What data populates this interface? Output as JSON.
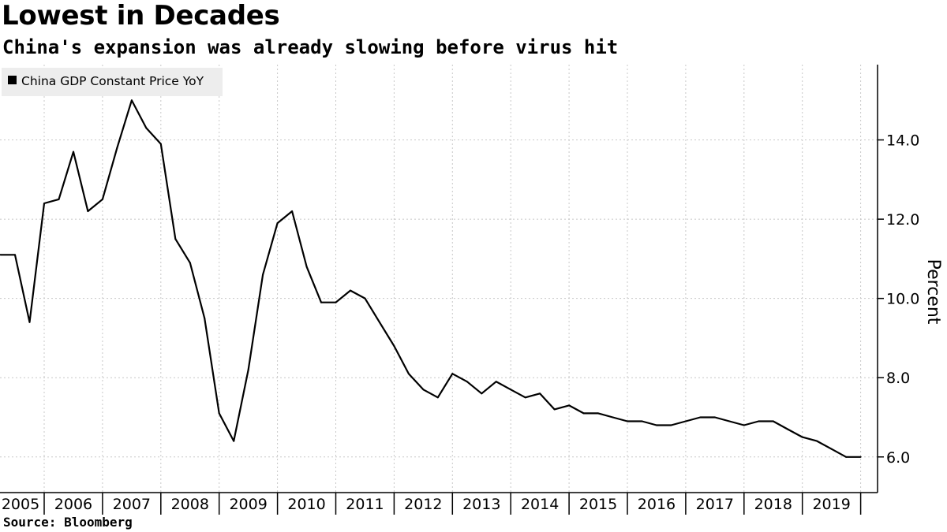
{
  "title": "Lowest in Decades",
  "subtitle": "China's expansion was already slowing before virus hit",
  "source": "Source: Bloomberg",
  "colors": {
    "line": "#000000",
    "grid": "#c8c8c8",
    "legend_bg": "#ededed"
  },
  "chart_data": {
    "type": "line",
    "title": "Lowest in Decades",
    "subtitle": "China's expansion was already slowing before virus hit",
    "xlabel": "",
    "ylabel": "Percent",
    "y_axis_side": "right",
    "ylim": [
      5.1,
      15.9
    ],
    "yticks": [
      6.0,
      8.0,
      10.0,
      12.0,
      14.0
    ],
    "ytick_labels": [
      "6.0",
      "8.0",
      "10.0",
      "12.0",
      "14.0"
    ],
    "x_tick_labels": [
      "2005",
      "2006",
      "2007",
      "2008",
      "2009",
      "2010",
      "2011",
      "2012",
      "2013",
      "2014",
      "2015",
      "2016",
      "2017",
      "2018",
      "2019"
    ],
    "grid": true,
    "legend_position": "top-left",
    "series": [
      {
        "name": "China GDP Constant Price YoY",
        "color": "#000000",
        "x": [
          "2005-Q1",
          "2005-Q2",
          "2005-Q3",
          "2005-Q4",
          "2006-Q1",
          "2006-Q2",
          "2006-Q3",
          "2006-Q4",
          "2007-Q1",
          "2007-Q2",
          "2007-Q3",
          "2007-Q4",
          "2008-Q1",
          "2008-Q2",
          "2008-Q3",
          "2008-Q4",
          "2009-Q1",
          "2009-Q2",
          "2009-Q3",
          "2009-Q4",
          "2010-Q1",
          "2010-Q2",
          "2010-Q3",
          "2010-Q4",
          "2011-Q1",
          "2011-Q2",
          "2011-Q3",
          "2011-Q4",
          "2012-Q1",
          "2012-Q2",
          "2012-Q3",
          "2012-Q4",
          "2013-Q1",
          "2013-Q2",
          "2013-Q3",
          "2013-Q4",
          "2014-Q1",
          "2014-Q2",
          "2014-Q3",
          "2014-Q4",
          "2015-Q1",
          "2015-Q2",
          "2015-Q3",
          "2015-Q4",
          "2016-Q1",
          "2016-Q2",
          "2016-Q3",
          "2016-Q4",
          "2017-Q1",
          "2017-Q2",
          "2017-Q3",
          "2017-Q4",
          "2018-Q1",
          "2018-Q2",
          "2018-Q3",
          "2018-Q4",
          "2019-Q1",
          "2019-Q2",
          "2019-Q3",
          "2019-Q4"
        ],
        "values": [
          11.1,
          11.1,
          9.4,
          12.4,
          12.5,
          13.7,
          12.2,
          12.5,
          13.8,
          15.0,
          14.3,
          13.9,
          11.5,
          10.9,
          9.5,
          7.1,
          6.4,
          8.2,
          10.6,
          11.9,
          12.2,
          10.8,
          9.9,
          9.9,
          10.2,
          10.0,
          9.4,
          8.8,
          8.1,
          7.7,
          7.5,
          8.1,
          7.9,
          7.6,
          7.9,
          7.7,
          7.5,
          7.6,
          7.2,
          7.3,
          7.1,
          7.1,
          7.0,
          6.9,
          6.9,
          6.8,
          6.8,
          6.9,
          7.0,
          7.0,
          6.9,
          6.8,
          6.9,
          6.9,
          6.7,
          6.5,
          6.4,
          6.2,
          6.0,
          6.0
        ]
      }
    ]
  }
}
